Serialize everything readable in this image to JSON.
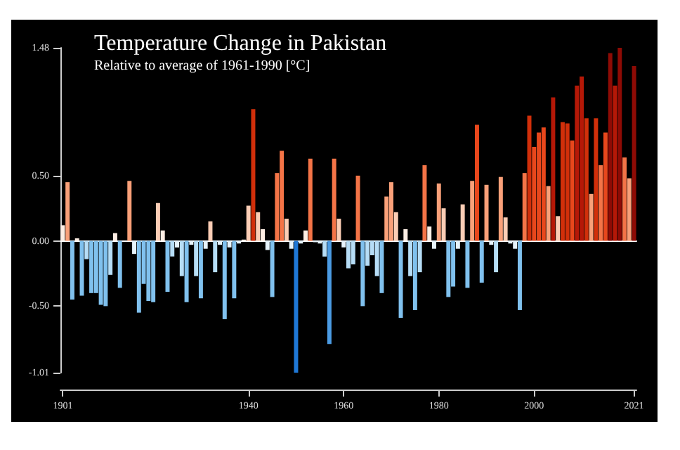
{
  "chart_data": {
    "type": "bar",
    "title": "Temperature Change in Pakistan",
    "subtitle": "Relative to average of 1961-1990 [°C]",
    "categories": [
      "1901",
      null,
      null,
      null,
      null,
      null,
      null,
      null,
      null,
      null,
      null,
      null,
      null,
      null,
      null,
      null,
      null,
      null,
      null,
      null,
      null,
      null,
      null,
      null,
      null,
      null,
      null,
      null,
      null,
      null,
      null,
      null,
      null,
      null,
      null,
      null,
      null,
      null,
      null,
      "1940",
      null,
      null,
      null,
      null,
      null,
      null,
      null,
      null,
      null,
      null,
      null,
      null,
      null,
      null,
      null,
      null,
      null,
      null,
      null,
      "1960",
      null,
      null,
      null,
      null,
      null,
      null,
      null,
      null,
      null,
      null,
      null,
      null,
      null,
      null,
      null,
      null,
      null,
      null,
      null,
      "1980",
      null,
      null,
      null,
      null,
      null,
      null,
      null,
      null,
      null,
      null,
      null,
      null,
      null,
      null,
      null,
      null,
      null,
      null,
      null,
      "2000",
      null,
      null,
      null,
      null,
      null,
      null,
      null,
      null,
      null,
      null,
      null,
      null,
      null,
      null,
      null,
      null,
      null,
      null,
      null,
      null,
      "2021"
    ],
    "values": [
      0.12,
      0.45,
      -0.45,
      0.02,
      -0.42,
      -0.14,
      -0.4,
      -0.4,
      -0.49,
      -0.5,
      -0.26,
      0.06,
      -0.36,
      null,
      0.46,
      -0.1,
      -0.55,
      -0.33,
      -0.46,
      -0.47,
      0.29,
      0.08,
      -0.39,
      -0.12,
      -0.05,
      -0.27,
      -0.47,
      -0.03,
      -0.27,
      -0.44,
      -0.06,
      0.15,
      -0.24,
      -0.03,
      -0.6,
      -0.05,
      -0.44,
      -0.02,
      0.01,
      0.27,
      1.01,
      0.22,
      0.09,
      -0.07,
      -0.43,
      0.52,
      0.69,
      0.17,
      -0.06,
      -1.01,
      -0.02,
      0.08,
      0.63,
      -0.01,
      -0.02,
      -0.12,
      -0.79,
      0.63,
      0.17,
      -0.05,
      -0.21,
      -0.18,
      0.5,
      -0.5,
      -0.19,
      -0.11,
      -0.27,
      -0.4,
      0.34,
      0.45,
      0.22,
      -0.59,
      0.09,
      -0.27,
      -0.53,
      -0.24,
      0.58,
      0.11,
      -0.06,
      0.44,
      0.25,
      -0.43,
      -0.35,
      -0.06,
      0.28,
      -0.36,
      0.46,
      0.89,
      -0.32,
      0.43,
      -0.03,
      -0.24,
      0.49,
      0.18,
      -0.02,
      -0.06,
      -0.53,
      0.52,
      0.96,
      0.72,
      0.83,
      0.87,
      0.42,
      1.1,
      0.19,
      0.91,
      0.9,
      0.77,
      1.19,
      1.26,
      0.94,
      0.36,
      0.94,
      0.58,
      0.83,
      1.44,
      1.19,
      1.48,
      0.64,
      0.48,
      1.34
    ],
    "colors": [
      "#fdeee4",
      "#f9a079",
      "#80c1ee",
      "#fdeee4",
      "#80c1ee",
      "#b6ddf6",
      "#80c1ee",
      "#80c1ee",
      "#80c1ee",
      "#80c1ee",
      "#b6ddf6",
      "#fdeee4",
      "#80c1ee",
      "#e6f3fb",
      "#f9a079",
      "#e6f3fb",
      "#80c1ee",
      "#80c1ee",
      "#80c1ee",
      "#80c1ee",
      "#fbcdb5",
      "#fdeee4",
      "#80c1ee",
      "#b6ddf6",
      "#e6f3fb",
      "#b6ddf6",
      "#80c1ee",
      "#e6f3fb",
      "#b6ddf6",
      "#80c1ee",
      "#e6f3fb",
      "#fbcdb5",
      "#b6ddf6",
      "#e6f3fb",
      "#80c1ee",
      "#e6f3fb",
      "#80c1ee",
      "#e6f3fb",
      "#fdeee4",
      "#fbcdb5",
      "#d12f0a",
      "#fbcdb5",
      "#fdeee4",
      "#e6f3fb",
      "#80c1ee",
      "#f47447",
      "#f47447",
      "#fbcdb5",
      "#e6f3fb",
      "#1f78d6",
      "#e6f3fb",
      "#fdeee4",
      "#f47447",
      "#e6f3fb",
      "#e6f3fb",
      "#b6ddf6",
      "#4b9be3",
      "#f47447",
      "#fbcdb5",
      "#e6f3fb",
      "#b6ddf6",
      "#b6ddf6",
      "#f47447",
      "#80c1ee",
      "#b6ddf6",
      "#b6ddf6",
      "#b6ddf6",
      "#80c1ee",
      "#f9a079",
      "#f9a079",
      "#fbcdb5",
      "#80c1ee",
      "#fdeee4",
      "#b6ddf6",
      "#80c1ee",
      "#b6ddf6",
      "#f47447",
      "#fdeee4",
      "#e6f3fb",
      "#f9a079",
      "#fbcdb5",
      "#80c1ee",
      "#80c1ee",
      "#e6f3fb",
      "#fbcdb5",
      "#80c1ee",
      "#f9a079",
      "#e8471c",
      "#80c1ee",
      "#f9a079",
      "#e6f3fb",
      "#b6ddf6",
      "#f9a079",
      "#fbcdb5",
      "#e6f3fb",
      "#e6f3fb",
      "#80c1ee",
      "#f47447",
      "#d12f0a",
      "#e8471c",
      "#e8471c",
      "#e8471c",
      "#f9a079",
      "#b51807",
      "#fbcdb5",
      "#d12f0a",
      "#d12f0a",
      "#e8471c",
      "#b51807",
      "#b51807",
      "#d12f0a",
      "#f9a079",
      "#d12f0a",
      "#f47447",
      "#e8471c",
      "#8e0b05",
      "#b51807",
      "#8e0b05",
      "#f47447",
      "#f9a079",
      "#8e0b05"
    ],
    "ylim": [
      -1.01,
      1.48
    ],
    "yticks": [
      {
        "value": -1.01,
        "label": "-1.01"
      },
      {
        "value": -0.5,
        "label": "-0.50"
      },
      {
        "value": 0,
        "label": "0.00"
      },
      {
        "value": 0.5,
        "label": "0.50"
      },
      {
        "value": 1.48,
        "label": "1.48"
      }
    ]
  }
}
